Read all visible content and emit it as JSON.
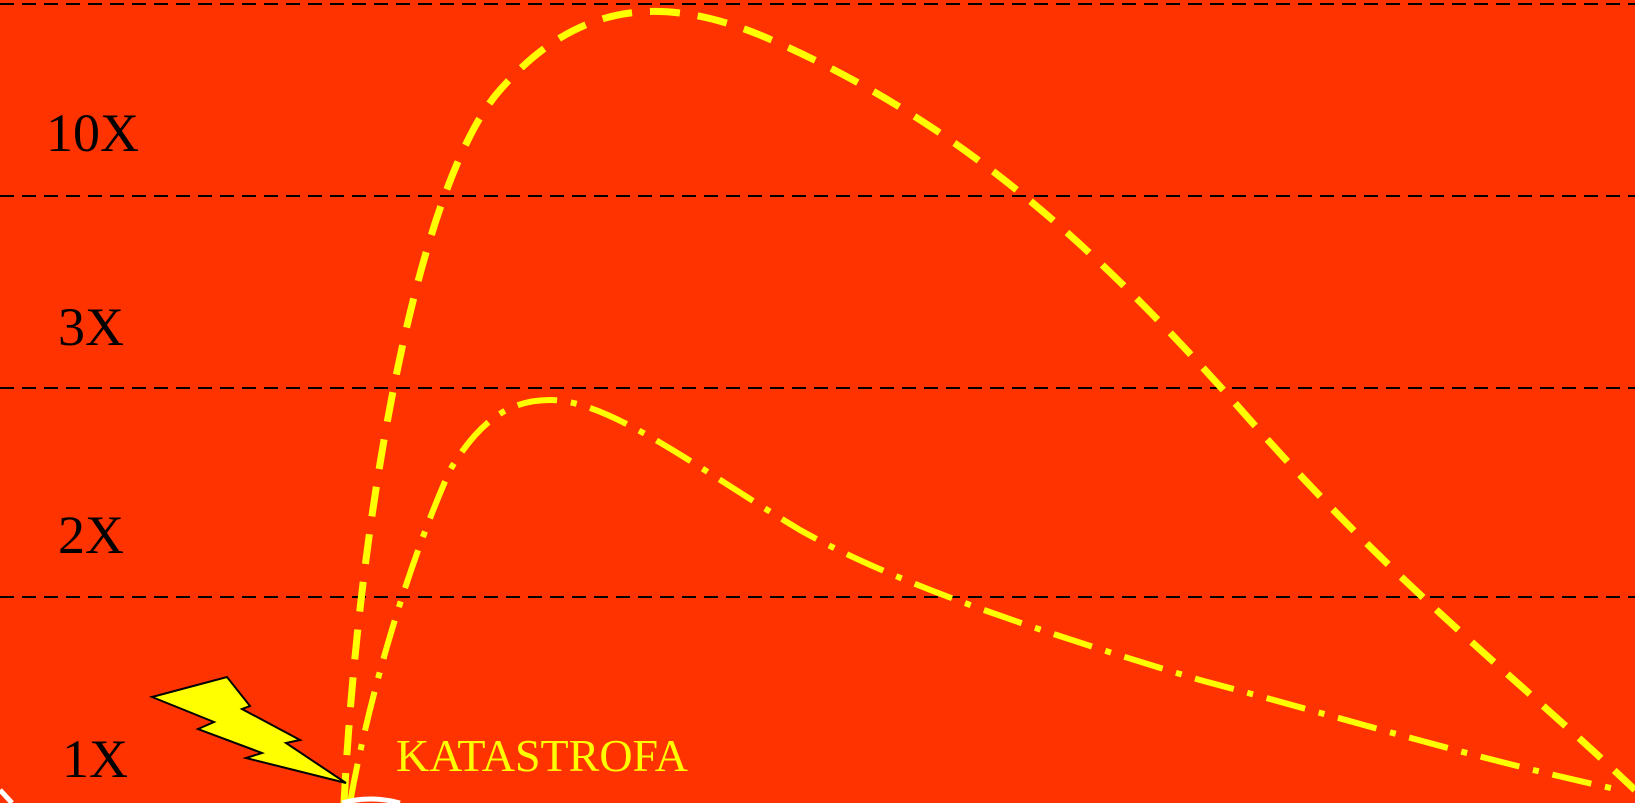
{
  "colors": {
    "background": "#ff3300",
    "curve": "#ffff00",
    "gridline": "#000000",
    "level_text": "#000000",
    "event_text": "#ffff00"
  },
  "levels": [
    {
      "id": "10x",
      "label": "10X"
    },
    {
      "id": "3x",
      "label": "3X"
    },
    {
      "id": "2x",
      "label": "2X"
    },
    {
      "id": "1x",
      "label": "1X"
    }
  ],
  "event": {
    "label": "KATASTROFA",
    "icon": "lightning-bolt-icon"
  },
  "curves": [
    {
      "id": "major",
      "style": "dashed"
    },
    {
      "id": "minor",
      "style": "dash-dot"
    }
  ]
}
